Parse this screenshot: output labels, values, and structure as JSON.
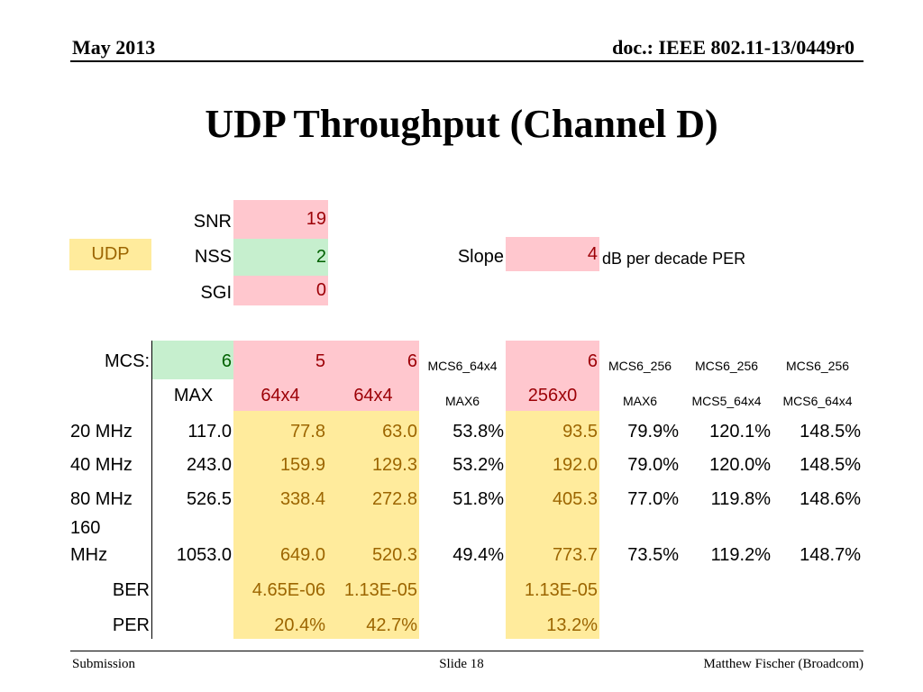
{
  "header": {
    "date": "May 2013",
    "doc": "doc.: IEEE 802.11-13/0449r0"
  },
  "title": "UDP Throughput (Channel D)",
  "params": {
    "udp_label": "UDP",
    "snr_label": "SNR",
    "snr_value": "19",
    "nss_label": "NSS",
    "nss_value": "2",
    "sgi_label": "SGI",
    "sgi_value": "0",
    "slope_label": "Slope",
    "slope_value": "4",
    "slope_unit": "dB per decade PER"
  },
  "table": {
    "mcs_label": "MCS:",
    "mcs_row": [
      "6",
      "5",
      "6",
      "MCS6_64x4",
      "6",
      "MCS6_256",
      "MCS6_256",
      "MCS6_256"
    ],
    "sub_row": [
      "MAX",
      "64x4",
      "64x4",
      "MAX6",
      "256x0",
      "MAX6",
      "MCS5_64x4",
      "MCS6_64x4"
    ],
    "rows": [
      {
        "label": "20 MHz",
        "values": [
          "117.0",
          "77.8",
          "63.0",
          "53.8%",
          "93.5",
          "79.9%",
          "120.1%",
          "148.5%"
        ]
      },
      {
        "label": "40 MHz",
        "values": [
          "243.0",
          "159.9",
          "129.3",
          "53.2%",
          "192.0",
          "79.0%",
          "120.0%",
          "148.5%"
        ]
      },
      {
        "label": "80 MHz",
        "values": [
          "526.5",
          "338.4",
          "272.8",
          "51.8%",
          "405.3",
          "77.0%",
          "119.8%",
          "148.6%"
        ]
      },
      {
        "label_line1": "160",
        "label_line2": "MHz",
        "values": [
          "1053.0",
          "649.0",
          "520.3",
          "49.4%",
          "773.7",
          "73.5%",
          "119.2%",
          "148.7%"
        ]
      }
    ],
    "ber": {
      "label": "BER",
      "c2": "4.65E-06",
      "c3": "1.13E-05",
      "c5": "1.13E-05"
    },
    "per": {
      "label": "PER",
      "c2": "20.4%",
      "c3": "42.7%",
      "c5": "13.2%"
    }
  },
  "footer": {
    "left": "Submission",
    "center": "Slide 18",
    "right": "Matthew Fischer (Broadcom)"
  }
}
